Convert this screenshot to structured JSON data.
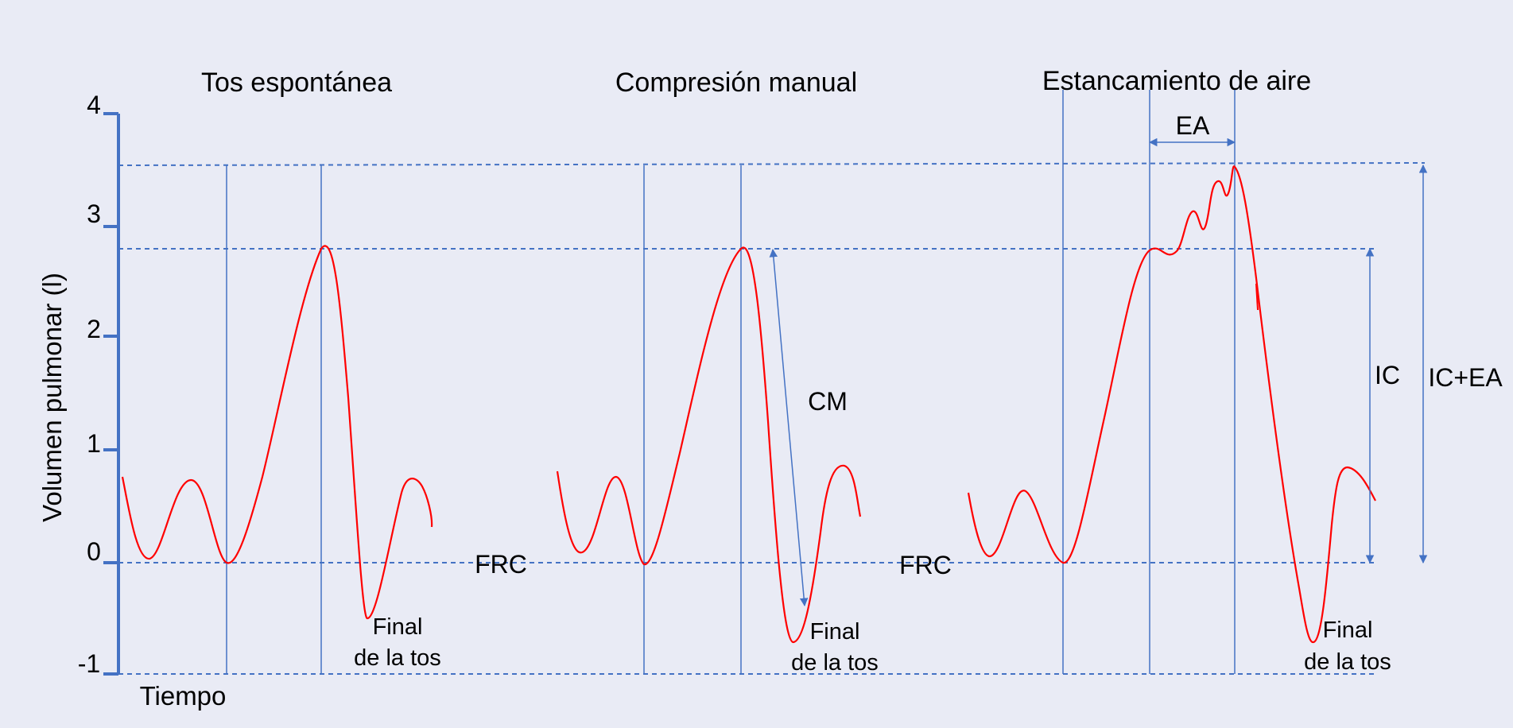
{
  "titles": {
    "spontaneous": "Tos espontánea",
    "manual": "Compresión manual",
    "stacking": "Estancamiento de aire"
  },
  "axis": {
    "y_title": "Volumen pulmonar (l)",
    "x_title": "Tiempo",
    "y_ticks": [
      "4",
      "3",
      "2",
      "1",
      "0",
      "-1"
    ]
  },
  "labels": {
    "frc_1": "FRC",
    "frc_2": "FRC",
    "cm": "CM",
    "ea": "EA",
    "ic": "IC",
    "ic_ea": "IC+EA",
    "end_1_line1": "Final",
    "end_1_line2": "de la tos",
    "end_2_line1": "Final",
    "end_2_line2": "de la tos",
    "end_3_line1": "Final",
    "end_3_line2": "de la tos"
  },
  "colors": {
    "background": "#e9ebf5",
    "axis": "#4472c4",
    "guide": "#4472c4",
    "curve": "#ff0000",
    "text": "#000000"
  }
}
